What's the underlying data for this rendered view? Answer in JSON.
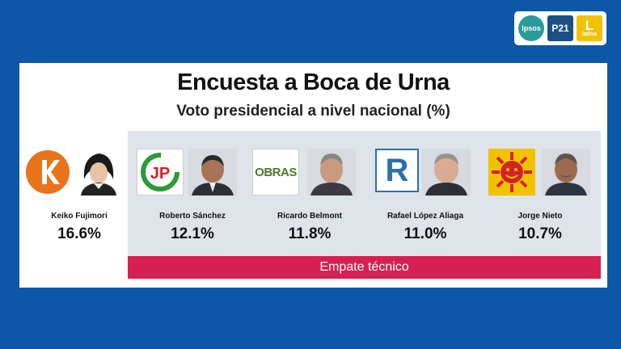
{
  "logos": {
    "ipsos": "Ipsos",
    "p21": "P21",
    "latina_mark": "L",
    "latina_text": "latina"
  },
  "poll": {
    "title": "Encuesta a Boca de Urna",
    "subtitle": "Voto presidencial a nivel nacional (%)",
    "band_label": "Empate técnico"
  },
  "candidates": [
    {
      "name": "Keiko Fujimori",
      "percent": "16.6%",
      "party_logo": "k-party-icon"
    },
    {
      "name": "Roberto Sánchez",
      "percent": "12.1%",
      "party_logo": "jp-party-icon",
      "party_text": "JP"
    },
    {
      "name": "Ricardo Belmont",
      "percent": "11.8%",
      "party_logo": "obras-party-icon",
      "party_text": "OBRAS"
    },
    {
      "name": "Rafael López Aliaga",
      "percent": "11.0%",
      "party_logo": "r-party-icon",
      "party_text": "R"
    },
    {
      "name": "Jorge Nieto",
      "percent": "10.7%",
      "party_logo": "sun-party-icon"
    }
  ],
  "colors": {
    "background": "#0d57a8",
    "band": "#d61f52",
    "gray_area": "#dfe3ea",
    "fuerza_orange": "#e8731a",
    "jp_red": "#d3232a",
    "jp_green": "#2a9a3a",
    "obras_green": "#4a7a2a",
    "renovacion_blue": "#2f6fa6",
    "sun_yellow": "#f2c200"
  }
}
